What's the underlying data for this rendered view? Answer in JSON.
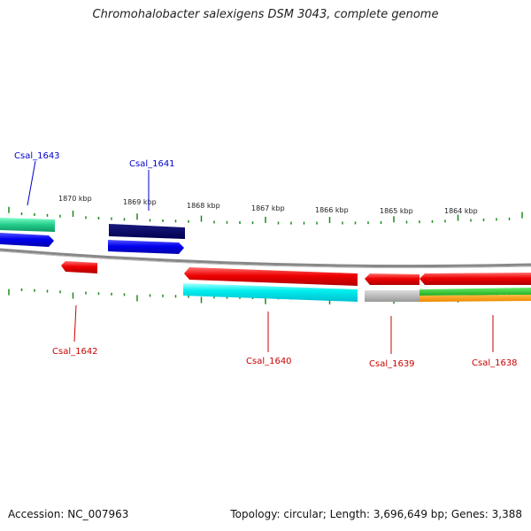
{
  "title": "Chromohalobacter salexigens DSM 3043, complete genome",
  "footer": {
    "accession": "Accession: NC_007963",
    "stats": "Topology: circular; Length: 3,696,649 bp; Genes: 3,388"
  },
  "kbp_labels": [
    "1870 kbp",
    "1869 kbp",
    "1868 kbp",
    "1867 kbp",
    "1866 kbp",
    "1865 kbp",
    "1864 kbp"
  ],
  "gene_labels": {
    "csal_1643": "Csal_1643",
    "csal_1641": "Csal_1641",
    "csal_1642": "Csal_1642",
    "csal_1640": "Csal_1640",
    "csal_1639": "Csal_1639",
    "csal_1638": "Csal_1638"
  },
  "colors": {
    "forward_label": "#0000cc",
    "reverse_label": "#cc0000",
    "tick": "#1a8a1a",
    "backbone": "#888888"
  }
}
